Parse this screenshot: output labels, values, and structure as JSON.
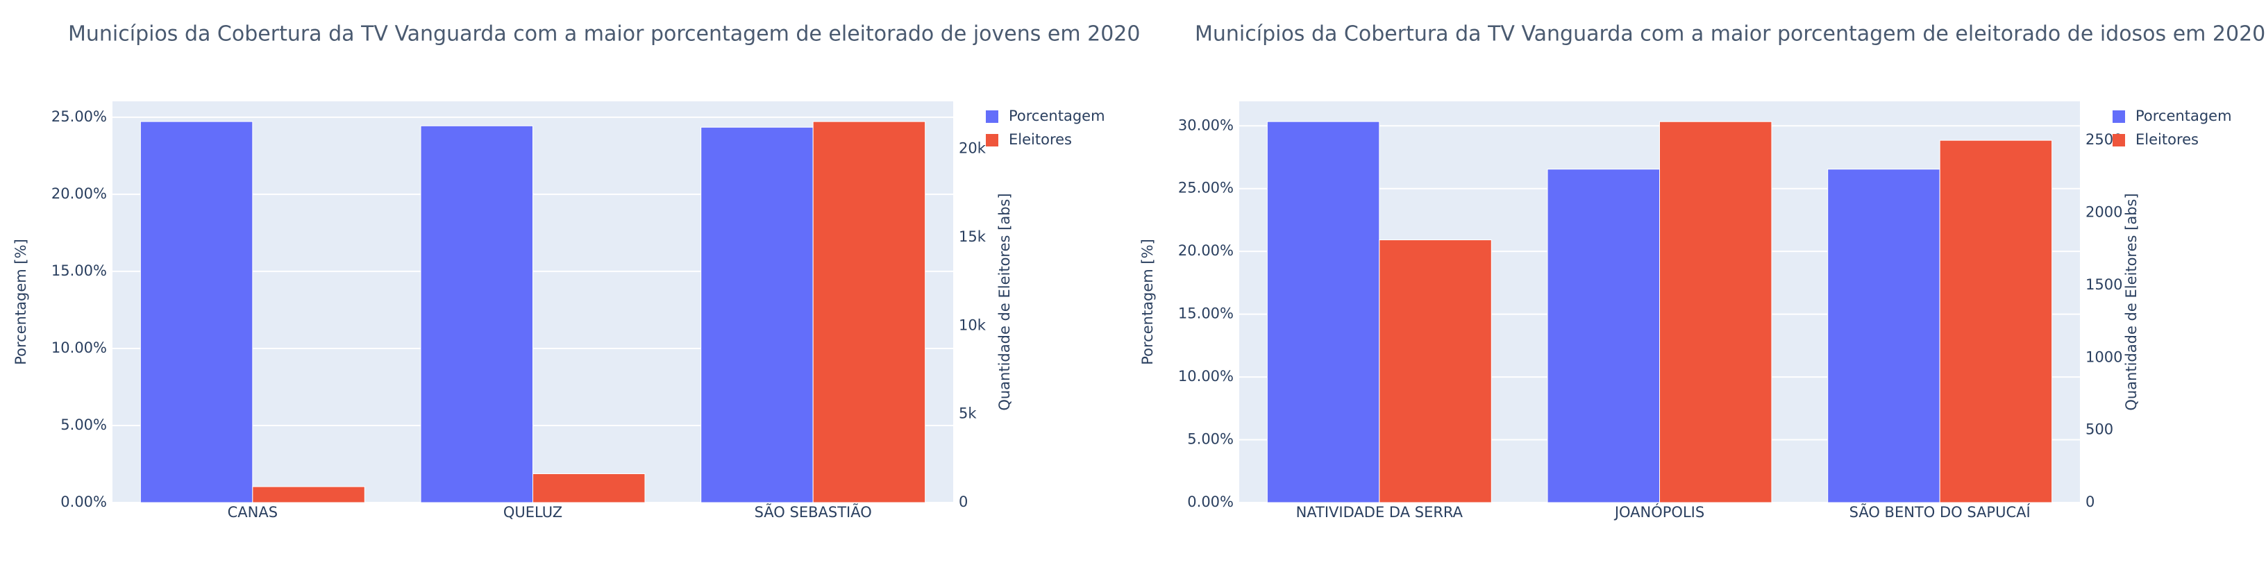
{
  "chart_data": [
    {
      "type": "bar",
      "title": "Municípios da Cobertura da TV Vanguarda com a maior porcentagem de eleitorado de jovens em 2020",
      "categories": [
        "CANAS",
        "QUELUZ",
        "SÃO SEBASTIÃO"
      ],
      "series": [
        {
          "name": "Porcentagem",
          "color": "#636efa",
          "values": [
            24.72,
            24.44,
            24.35
          ]
        },
        {
          "name": "Eleitores",
          "color": "#ef553b",
          "axis": "y2",
          "values": [
            900,
            1630,
            21550
          ]
        }
      ],
      "y_label": "Porcentagem [%]",
      "y2_label": "Quantidade de Eleitores [abs]",
      "ylim": [
        0,
        26.03
      ],
      "yticks": [
        {
          "value": 0,
          "label": "0.00%"
        },
        {
          "value": 5,
          "label": "5.00%"
        },
        {
          "value": 10,
          "label": "10.00%"
        },
        {
          "value": 15,
          "label": "15.00%"
        },
        {
          "value": 20,
          "label": "20.00%"
        },
        {
          "value": 25,
          "label": "25.00%"
        }
      ],
      "y2lim": [
        0,
        22694
      ],
      "y2ticks": [
        0,
        {
          "value": 5000,
          "label": "5k"
        },
        {
          "value": 10000,
          "label": "10k"
        },
        {
          "value": 15000,
          "label": "15k"
        },
        {
          "value": 20000,
          "label": "20k"
        }
      ],
      "grid": true
    },
    {
      "type": "bar",
      "title": "Municípios da Cobertura da TV Vanguarda com a maior porcentagem de eleitorado de idosos em 2020",
      "categories": [
        "NATIVIDADE DA SERRA",
        "JOANÓPOLIS",
        "SÃO BENTO DO SAPUCAÍ"
      ],
      "series": [
        {
          "name": "Porcentagem",
          "color": "#636efa",
          "values": [
            30.34,
            26.55,
            26.55
          ]
        },
        {
          "name": "Eleitores",
          "color": "#ef553b",
          "axis": "y2",
          "values": [
            1813,
            2629,
            2500
          ]
        }
      ],
      "y_label": "Porcentagem [%]",
      "y2_label": "Quantidade de Eleitores [abs]",
      "ylim": [
        0,
        31.95
      ],
      "yticks": [
        {
          "value": 0,
          "label": "0.00%"
        },
        {
          "value": 5,
          "label": "5.00%"
        },
        {
          "value": 10,
          "label": "10.00%"
        },
        {
          "value": 15,
          "label": "15.00%"
        },
        {
          "value": 20,
          "label": "20.00%"
        },
        {
          "value": 25,
          "label": "25.00%"
        },
        {
          "value": 30,
          "label": "30.00%"
        }
      ],
      "y2lim": [
        0,
        2769
      ],
      "y2ticks": [
        0,
        500,
        1000,
        1500,
        2000,
        2500
      ],
      "grid": true
    }
  ]
}
